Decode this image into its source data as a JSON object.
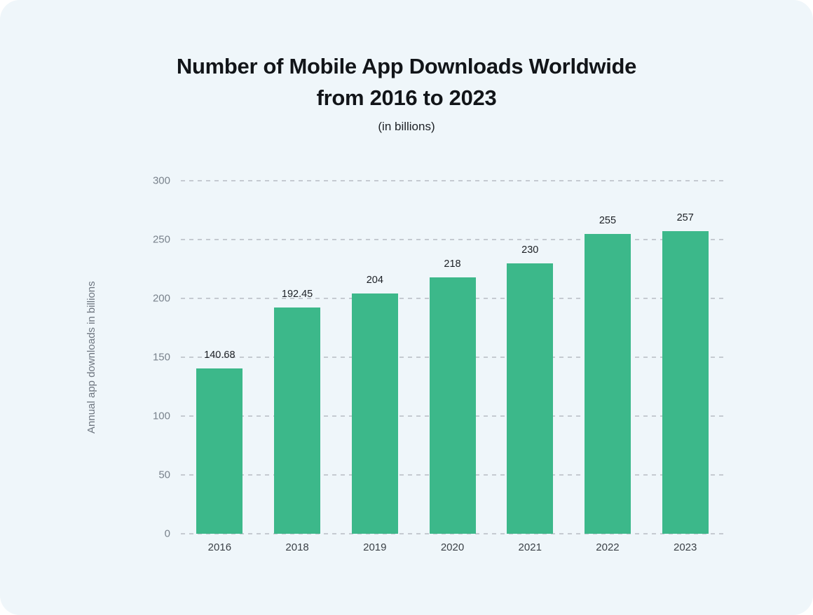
{
  "header": {
    "title_line1": "Number of Mobile App Downloads Worldwide",
    "title_line2": "from 2016 to 2023",
    "subtitle": "(in billions)"
  },
  "chart_data": {
    "type": "bar",
    "title": "Number of Mobile App Downloads Worldwide from 2016 to 2023",
    "subtitle": "(in billions)",
    "categories": [
      "2016",
      "2018",
      "2019",
      "2020",
      "2021",
      "2022",
      "2023"
    ],
    "values": [
      140.68,
      192.45,
      204,
      218,
      230,
      255,
      257
    ],
    "xlabel": "",
    "ylabel": "Annual app downloads in billions",
    "ylim": [
      0,
      300
    ],
    "yticks": [
      0,
      50,
      100,
      150,
      200,
      250,
      300
    ],
    "grid": "horizontal-dashed",
    "legend": "none",
    "colors": {
      "bar": "#3cb88a",
      "background": "#eff6fa",
      "gridline": "#c5cad1",
      "y_tick_text": "#79828c",
      "x_tick_text": "#3b4147",
      "value_label_text": "#1b1f24",
      "title_text": "#121519",
      "axis_title_text": "#6f7781"
    }
  }
}
